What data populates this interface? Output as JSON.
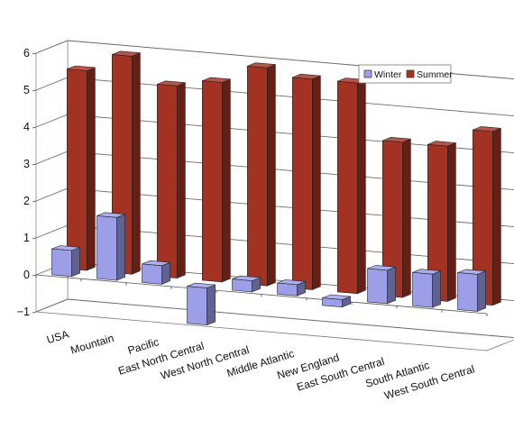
{
  "chart_data": {
    "type": "bar",
    "title": "",
    "xlabel": "",
    "ylabel": "",
    "ylim": [
      -1,
      6
    ],
    "yticks": [
      "−1",
      "0",
      "1",
      "2",
      "3",
      "4",
      "5",
      "6"
    ],
    "grid": true,
    "legend_position": "top-right",
    "categories": [
      "USA",
      "Mountain",
      "Pacific",
      "East North Central",
      "West North Central",
      "Middle Atlantic",
      "New England",
      "East South Central",
      "South Atlantic",
      "West South Central"
    ],
    "series": [
      {
        "name": "Winter",
        "color": "#9d9ee8",
        "values": [
          0.7,
          1.7,
          0.5,
          -1.0,
          0.3,
          0.3,
          -0.2,
          0.9,
          0.9,
          1.0
        ]
      },
      {
        "name": "Summer",
        "color": "#a33222",
        "values": [
          5.4,
          5.9,
          5.2,
          5.4,
          5.9,
          5.7,
          5.7,
          4.2,
          4.2,
          4.7
        ]
      }
    ]
  }
}
